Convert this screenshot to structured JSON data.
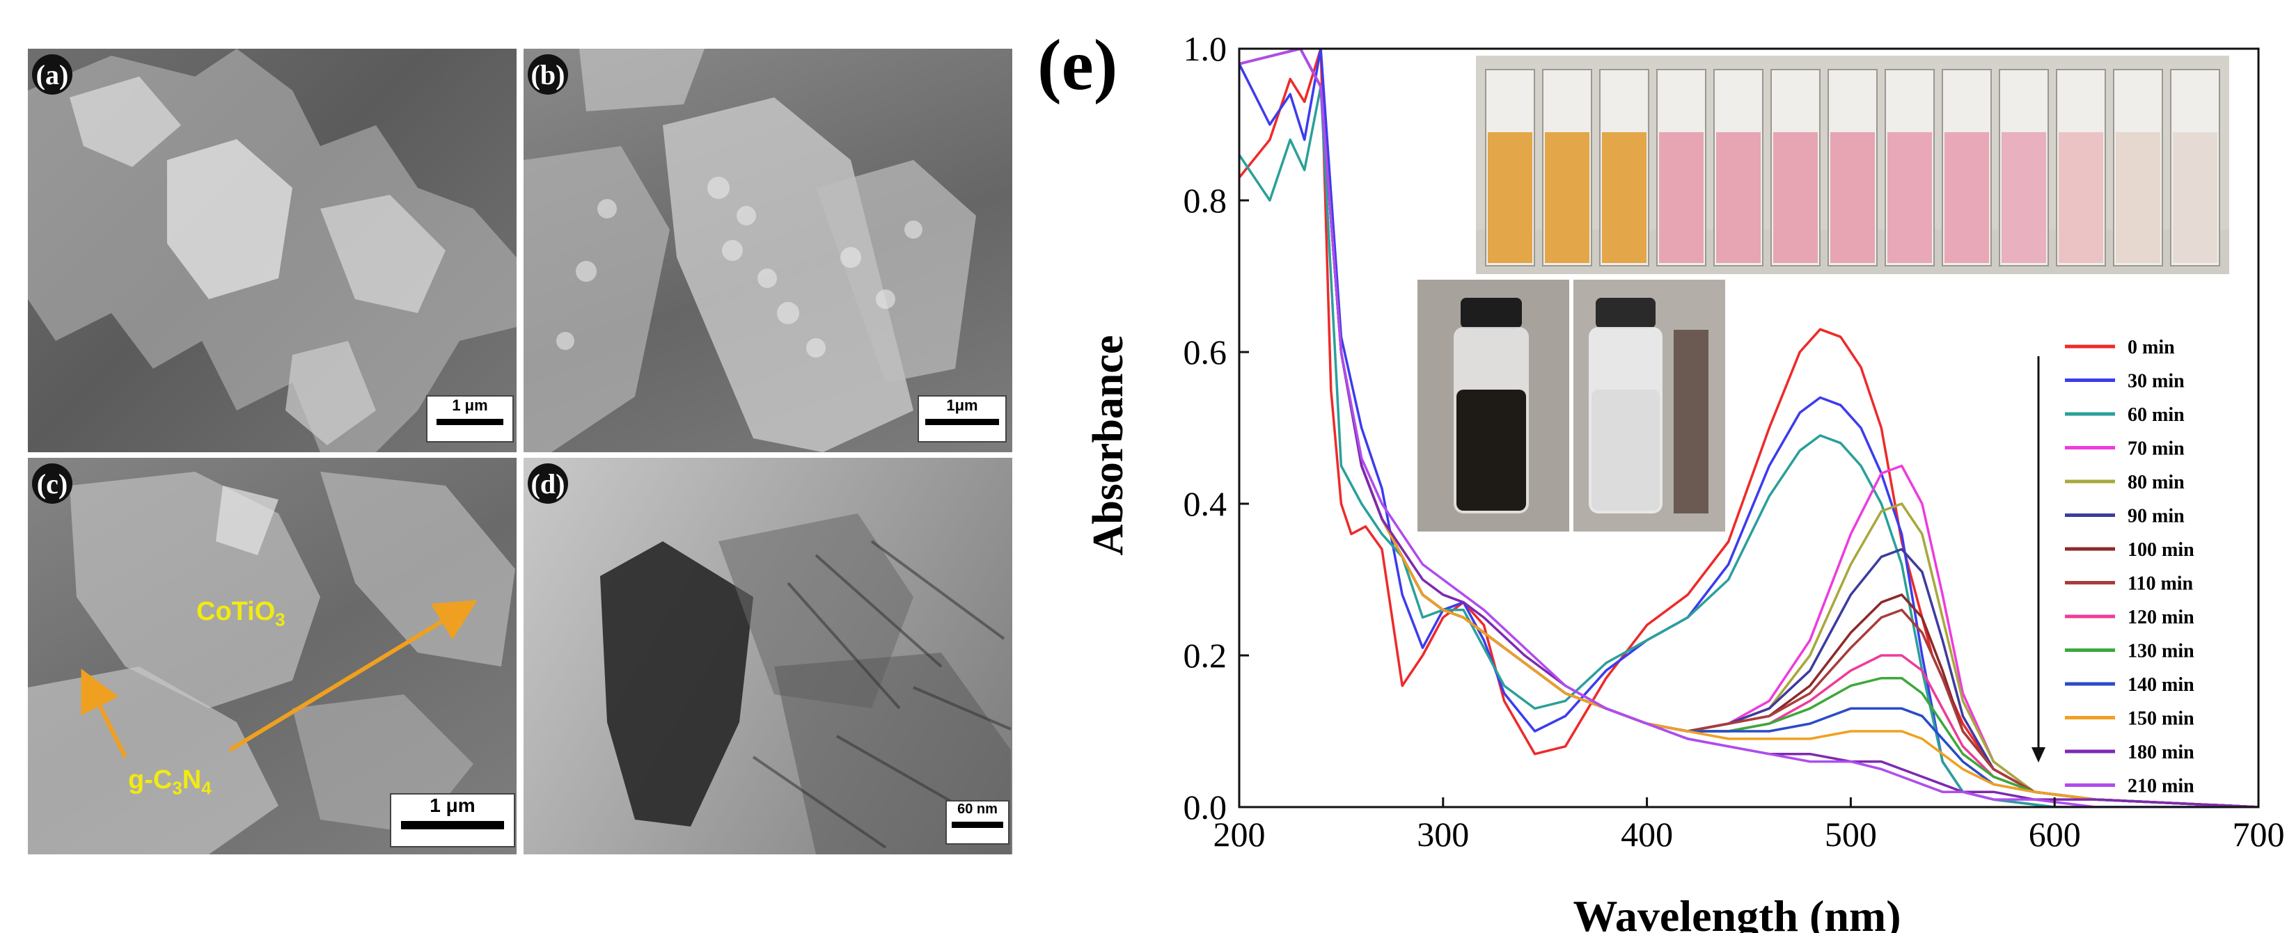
{
  "panels": {
    "a": {
      "label": "(a)",
      "scale": "1 μm"
    },
    "b": {
      "label": "(b)",
      "scale": "1μm"
    },
    "c": {
      "label": "(c)",
      "scale": "1 μm",
      "anno_cotio3": "CoTiO",
      "anno_cotio3_sub": "3",
      "anno_gcn_a": "g-C",
      "anno_gcn_sub1": "3",
      "anno_gcn_b": "N",
      "anno_gcn_sub2": "4"
    },
    "d": {
      "label": "(d)",
      "scale": "60 nm"
    },
    "e": {
      "label": "(e)"
    }
  },
  "chart_data": {
    "type": "line",
    "xlabel": "Wavelength (nm)",
    "ylabel": "Absorbance",
    "xlim": [
      200,
      700
    ],
    "ylim": [
      0.0,
      1.0
    ],
    "xticks": [
      200,
      300,
      400,
      500,
      600,
      700
    ],
    "yticks": [
      0.0,
      0.2,
      0.4,
      0.6,
      0.8,
      1.0
    ],
    "grid": false,
    "legend_position": "right",
    "legend_arrow": "down",
    "series": [
      {
        "name": "0 min",
        "color": "#ee2a2a",
        "x": [
          200,
          215,
          225,
          232,
          240,
          245,
          250,
          255,
          262,
          270,
          280,
          290,
          300,
          310,
          320,
          330,
          345,
          360,
          380,
          400,
          420,
          440,
          460,
          475,
          485,
          495,
          505,
          515,
          525,
          540,
          555,
          570,
          590,
          620,
          700
        ],
        "y": [
          0.83,
          0.88,
          0.96,
          0.93,
          1.0,
          0.55,
          0.4,
          0.36,
          0.37,
          0.34,
          0.16,
          0.2,
          0.25,
          0.27,
          0.24,
          0.14,
          0.07,
          0.08,
          0.17,
          0.24,
          0.28,
          0.35,
          0.5,
          0.6,
          0.63,
          0.62,
          0.58,
          0.5,
          0.35,
          0.2,
          0.11,
          0.05,
          0.02,
          0.01,
          0.0
        ]
      },
      {
        "name": "30 min",
        "color": "#3c3cee",
        "x": [
          200,
          215,
          225,
          232,
          240,
          250,
          260,
          270,
          280,
          290,
          300,
          310,
          320,
          330,
          345,
          360,
          380,
          400,
          420,
          440,
          460,
          475,
          485,
          495,
          505,
          515,
          525,
          535,
          545,
          555,
          570,
          600,
          700
        ],
        "y": [
          0.98,
          0.9,
          0.94,
          0.88,
          1.0,
          0.62,
          0.5,
          0.42,
          0.28,
          0.21,
          0.26,
          0.27,
          0.22,
          0.15,
          0.1,
          0.12,
          0.18,
          0.22,
          0.25,
          0.32,
          0.45,
          0.52,
          0.54,
          0.53,
          0.5,
          0.44,
          0.36,
          0.2,
          0.06,
          0.02,
          0.01,
          0.0,
          0.0
        ]
      },
      {
        "name": "60 min",
        "color": "#2aa09a",
        "x": [
          200,
          215,
          225,
          232,
          240,
          250,
          260,
          270,
          280,
          290,
          300,
          310,
          320,
          330,
          345,
          360,
          380,
          400,
          420,
          440,
          460,
          475,
          485,
          495,
          505,
          515,
          525,
          535,
          545,
          555,
          570,
          600,
          700
        ],
        "y": [
          0.86,
          0.8,
          0.88,
          0.84,
          0.95,
          0.45,
          0.4,
          0.36,
          0.33,
          0.25,
          0.26,
          0.26,
          0.21,
          0.16,
          0.13,
          0.14,
          0.19,
          0.22,
          0.25,
          0.3,
          0.41,
          0.47,
          0.49,
          0.48,
          0.45,
          0.4,
          0.32,
          0.18,
          0.06,
          0.02,
          0.01,
          0.0,
          0.0
        ]
      },
      {
        "name": "70 min",
        "color": "#ee3cdc",
        "x": [
          200,
          230,
          240,
          250,
          260,
          270,
          280,
          290,
          300,
          310,
          320,
          340,
          360,
          380,
          400,
          420,
          440,
          460,
          480,
          500,
          515,
          525,
          535,
          545,
          555,
          570,
          590,
          620,
          700
        ],
        "y": [
          0.98,
          1.0,
          0.95,
          0.6,
          0.45,
          0.38,
          0.33,
          0.28,
          0.26,
          0.25,
          0.23,
          0.19,
          0.15,
          0.13,
          0.11,
          0.1,
          0.11,
          0.14,
          0.22,
          0.36,
          0.44,
          0.45,
          0.4,
          0.28,
          0.15,
          0.06,
          0.02,
          0.01,
          0.0
        ]
      },
      {
        "name": "80 min",
        "color": "#a8a83c",
        "x": [
          200,
          230,
          240,
          250,
          260,
          270,
          280,
          290,
          300,
          310,
          320,
          340,
          360,
          380,
          400,
          420,
          440,
          460,
          480,
          500,
          515,
          525,
          535,
          545,
          555,
          570,
          590,
          620,
          700
        ],
        "y": [
          0.98,
          1.0,
          0.95,
          0.6,
          0.45,
          0.38,
          0.33,
          0.28,
          0.26,
          0.25,
          0.23,
          0.19,
          0.15,
          0.13,
          0.11,
          0.1,
          0.11,
          0.13,
          0.2,
          0.32,
          0.39,
          0.4,
          0.36,
          0.25,
          0.14,
          0.06,
          0.02,
          0.01,
          0.0
        ]
      },
      {
        "name": "90 min",
        "color": "#3c3c9e",
        "x": [
          200,
          230,
          240,
          250,
          260,
          270,
          280,
          290,
          300,
          310,
          320,
          340,
          360,
          380,
          400,
          420,
          440,
          460,
          480,
          500,
          515,
          525,
          535,
          545,
          555,
          570,
          590,
          620,
          700
        ],
        "y": [
          0.98,
          1.0,
          0.95,
          0.6,
          0.45,
          0.38,
          0.33,
          0.28,
          0.26,
          0.25,
          0.23,
          0.19,
          0.15,
          0.13,
          0.11,
          0.1,
          0.11,
          0.13,
          0.18,
          0.28,
          0.33,
          0.34,
          0.31,
          0.22,
          0.12,
          0.05,
          0.02,
          0.01,
          0.0
        ]
      },
      {
        "name": "100 min",
        "color": "#8c2a2a",
        "x": [
          200,
          230,
          240,
          250,
          260,
          270,
          280,
          290,
          300,
          310,
          320,
          340,
          360,
          380,
          400,
          420,
          440,
          460,
          480,
          500,
          515,
          525,
          535,
          545,
          555,
          570,
          590,
          620,
          700
        ],
        "y": [
          0.98,
          1.0,
          0.95,
          0.6,
          0.45,
          0.38,
          0.33,
          0.28,
          0.26,
          0.25,
          0.23,
          0.19,
          0.15,
          0.13,
          0.11,
          0.1,
          0.11,
          0.12,
          0.16,
          0.23,
          0.27,
          0.28,
          0.25,
          0.18,
          0.1,
          0.05,
          0.02,
          0.01,
          0.0
        ]
      },
      {
        "name": "110 min",
        "color": "#a83c3c",
        "x": [
          200,
          230,
          240,
          250,
          260,
          270,
          280,
          290,
          300,
          310,
          320,
          340,
          360,
          380,
          400,
          420,
          440,
          460,
          480,
          500,
          515,
          525,
          535,
          545,
          555,
          570,
          590,
          620,
          700
        ],
        "y": [
          0.98,
          1.0,
          0.95,
          0.6,
          0.45,
          0.38,
          0.33,
          0.28,
          0.26,
          0.25,
          0.23,
          0.19,
          0.15,
          0.13,
          0.11,
          0.1,
          0.11,
          0.12,
          0.15,
          0.21,
          0.25,
          0.26,
          0.23,
          0.17,
          0.1,
          0.05,
          0.02,
          0.01,
          0.0
        ]
      },
      {
        "name": "120 min",
        "color": "#ee3c9a",
        "x": [
          200,
          230,
          240,
          250,
          260,
          270,
          280,
          290,
          300,
          310,
          320,
          340,
          360,
          380,
          400,
          420,
          440,
          460,
          480,
          500,
          515,
          525,
          535,
          545,
          555,
          570,
          590,
          620,
          700
        ],
        "y": [
          0.98,
          1.0,
          0.95,
          0.6,
          0.45,
          0.38,
          0.33,
          0.28,
          0.26,
          0.25,
          0.23,
          0.19,
          0.15,
          0.13,
          0.11,
          0.1,
          0.1,
          0.11,
          0.14,
          0.18,
          0.2,
          0.2,
          0.18,
          0.13,
          0.08,
          0.04,
          0.02,
          0.01,
          0.0
        ]
      },
      {
        "name": "130 min",
        "color": "#3ca83c",
        "x": [
          200,
          230,
          240,
          250,
          260,
          270,
          280,
          290,
          300,
          310,
          320,
          340,
          360,
          380,
          400,
          420,
          440,
          460,
          480,
          500,
          515,
          525,
          535,
          545,
          555,
          570,
          590,
          620,
          700
        ],
        "y": [
          0.98,
          1.0,
          0.95,
          0.6,
          0.45,
          0.38,
          0.33,
          0.28,
          0.26,
          0.25,
          0.23,
          0.19,
          0.15,
          0.13,
          0.11,
          0.1,
          0.1,
          0.11,
          0.13,
          0.16,
          0.17,
          0.17,
          0.15,
          0.11,
          0.07,
          0.04,
          0.02,
          0.01,
          0.0
        ]
      },
      {
        "name": "140 min",
        "color": "#2a4cc8",
        "x": [
          200,
          230,
          240,
          250,
          260,
          270,
          280,
          290,
          300,
          310,
          320,
          340,
          360,
          380,
          400,
          420,
          440,
          460,
          480,
          500,
          515,
          525,
          535,
          545,
          555,
          570,
          590,
          620,
          700
        ],
        "y": [
          0.98,
          1.0,
          0.95,
          0.6,
          0.45,
          0.38,
          0.33,
          0.28,
          0.26,
          0.25,
          0.23,
          0.19,
          0.15,
          0.13,
          0.11,
          0.1,
          0.1,
          0.1,
          0.11,
          0.13,
          0.13,
          0.13,
          0.12,
          0.09,
          0.06,
          0.03,
          0.02,
          0.01,
          0.0
        ]
      },
      {
        "name": "150 min",
        "color": "#f0a020",
        "x": [
          200,
          230,
          240,
          250,
          260,
          270,
          280,
          290,
          300,
          310,
          320,
          340,
          360,
          380,
          400,
          420,
          440,
          460,
          480,
          500,
          515,
          525,
          535,
          545,
          555,
          570,
          590,
          620,
          700
        ],
        "y": [
          0.98,
          1.0,
          0.95,
          0.6,
          0.45,
          0.38,
          0.33,
          0.28,
          0.26,
          0.25,
          0.23,
          0.19,
          0.15,
          0.13,
          0.11,
          0.1,
          0.09,
          0.09,
          0.09,
          0.1,
          0.1,
          0.1,
          0.09,
          0.07,
          0.05,
          0.03,
          0.02,
          0.01,
          0.0
        ]
      },
      {
        "name": "180 min",
        "color": "#7c2ab0",
        "x": [
          200,
          230,
          240,
          250,
          260,
          270,
          280,
          290,
          300,
          310,
          320,
          340,
          360,
          380,
          400,
          420,
          440,
          460,
          480,
          500,
          515,
          525,
          535,
          545,
          555,
          570,
          590,
          620,
          700
        ],
        "y": [
          0.98,
          1.0,
          0.95,
          0.6,
          0.45,
          0.38,
          0.34,
          0.3,
          0.28,
          0.27,
          0.25,
          0.2,
          0.16,
          0.13,
          0.11,
          0.09,
          0.08,
          0.07,
          0.07,
          0.06,
          0.06,
          0.05,
          0.04,
          0.03,
          0.02,
          0.02,
          0.01,
          0.01,
          0.0
        ]
      },
      {
        "name": "210 min",
        "color": "#b04cee",
        "x": [
          200,
          230,
          240,
          250,
          260,
          270,
          280,
          290,
          300,
          310,
          320,
          340,
          360,
          380,
          400,
          420,
          440,
          460,
          480,
          500,
          515,
          525,
          535,
          545,
          555,
          570,
          590,
          620,
          700
        ],
        "y": [
          0.98,
          1.0,
          0.95,
          0.6,
          0.46,
          0.4,
          0.36,
          0.32,
          0.3,
          0.28,
          0.26,
          0.21,
          0.16,
          0.13,
          0.11,
          0.09,
          0.08,
          0.07,
          0.06,
          0.06,
          0.05,
          0.04,
          0.03,
          0.02,
          0.02,
          0.01,
          0.01,
          0.0,
          0.0
        ]
      }
    ]
  },
  "insets": {
    "cuvettes": {
      "colors": [
        "#e3a648",
        "#e3a648",
        "#e3a648",
        "#e7a5b4",
        "#e7a5b4",
        "#e7a5b4",
        "#e7a5b4",
        "#e8a8b8",
        "#e8a8b8",
        "#e9b0bf",
        "#ecc3c4",
        "#e6d7cf",
        "#e6dbd4"
      ]
    }
  }
}
